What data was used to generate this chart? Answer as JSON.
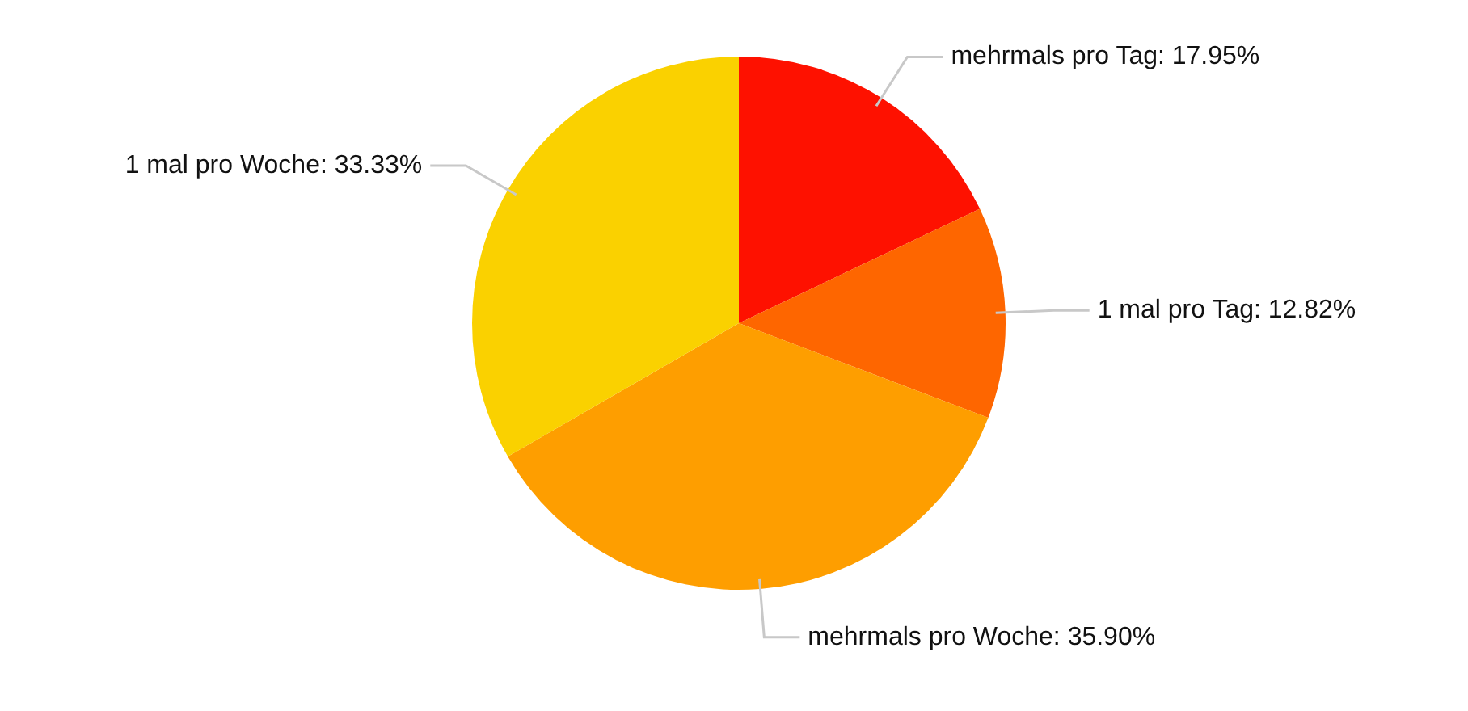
{
  "chart_data": {
    "type": "pie",
    "categories": [
      "mehrmals pro Tag",
      "1 mal pro Tag",
      "mehrmals pro Woche",
      "1 mal pro Woche"
    ],
    "values": [
      17.95,
      12.82,
      35.9,
      33.33
    ],
    "colors": [
      "#fe1100",
      "#fe6600",
      "#fe9e00",
      "#fad100"
    ],
    "value_labels": [
      "17.95%",
      "12.82%",
      "35.90%",
      "33.33%"
    ],
    "legend": false
  }
}
